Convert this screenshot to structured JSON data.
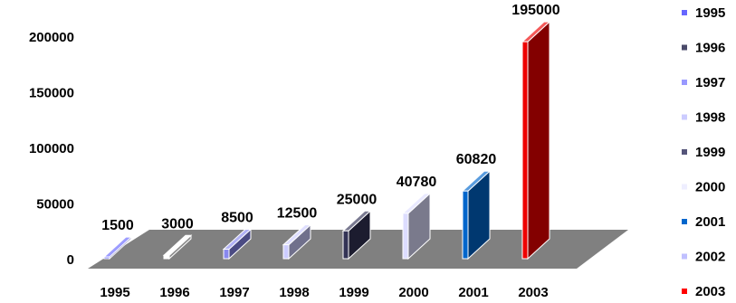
{
  "chart_data": {
    "type": "bar",
    "title": "",
    "xlabel": "",
    "ylabel": "",
    "categories": [
      "1995",
      "1996",
      "1997",
      "1998",
      "1999",
      "2000",
      "2001",
      "2003"
    ],
    "values": [
      1500,
      3000,
      8500,
      12500,
      25000,
      40780,
      60820,
      195000
    ],
    "value_labels": [
      "1500",
      "3000",
      "8500",
      "12500",
      "25000",
      "40780",
      "60820",
      "195000"
    ],
    "bar_colors": [
      "#6666ff",
      "#ffffff",
      "#8888ee",
      "#ccccff",
      "#333355",
      "#ddddff",
      "#0066cc",
      "#ee0000"
    ],
    "ylim": [
      0,
      200000
    ],
    "y_ticks": [
      "0",
      "50000",
      "100000",
      "150000",
      "200000"
    ],
    "y_tick_values": [
      0,
      50000,
      100000,
      150000,
      200000
    ],
    "grid": false,
    "floor_color": "#808080",
    "legend": {
      "position": "right",
      "entries": [
        {
          "label": "1995",
          "color": "#6666ff"
        },
        {
          "label": "1996",
          "color": "#4a4a6a"
        },
        {
          "label": "1997",
          "color": "#9999ff"
        },
        {
          "label": "1998",
          "color": "#ccccff"
        },
        {
          "label": "1999",
          "color": "#55557a"
        },
        {
          "label": "2000",
          "color": "#eeeeff"
        },
        {
          "label": "2001",
          "color": "#0066cc"
        },
        {
          "label": "2002",
          "color": "#c0c0ff"
        },
        {
          "label": "2003",
          "color": "#ff0000"
        }
      ]
    }
  }
}
